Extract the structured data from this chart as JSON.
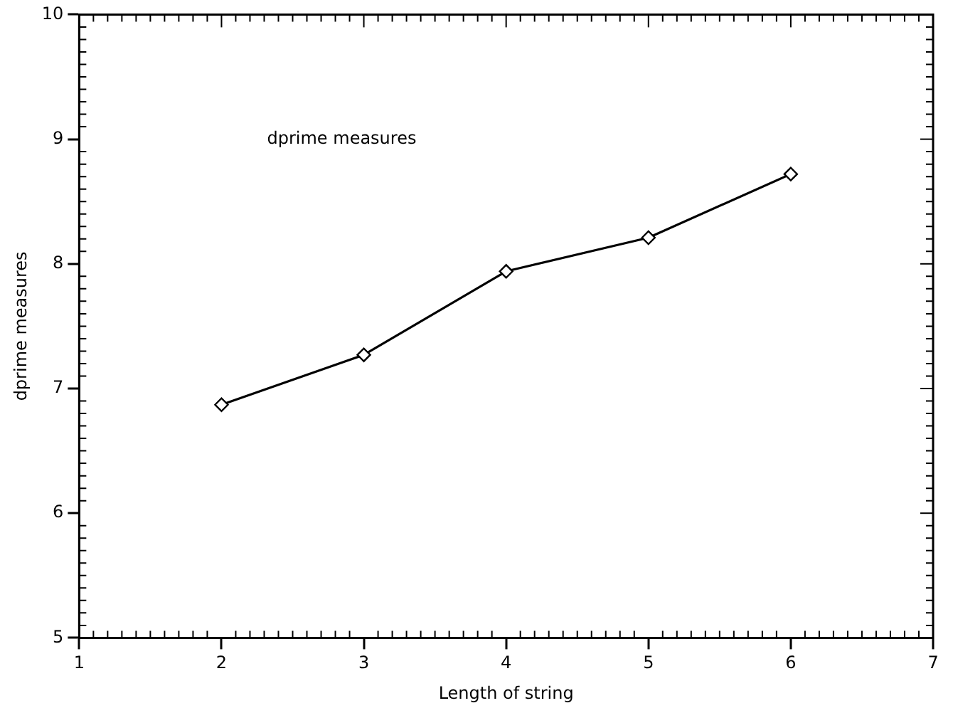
{
  "chart_data": {
    "type": "line",
    "xlabel": "Length of string",
    "ylabel": "dprime measures",
    "annotations": [
      "dprime measures"
    ],
    "x": [
      2,
      3,
      4,
      5,
      6
    ],
    "series": [
      {
        "color": "#000000",
        "values": [
          6.87,
          7.27,
          7.94,
          8.21,
          8.72
        ]
      }
    ],
    "xlim": [
      1,
      7
    ],
    "xticks": [
      1,
      2,
      3,
      4,
      5,
      6,
      7
    ],
    "ylim": [
      5,
      10
    ],
    "yticks": [
      5,
      6,
      7,
      8,
      9,
      10
    ],
    "grid": false,
    "legend": false,
    "marker": "diamond",
    "line_style": "solid"
  }
}
